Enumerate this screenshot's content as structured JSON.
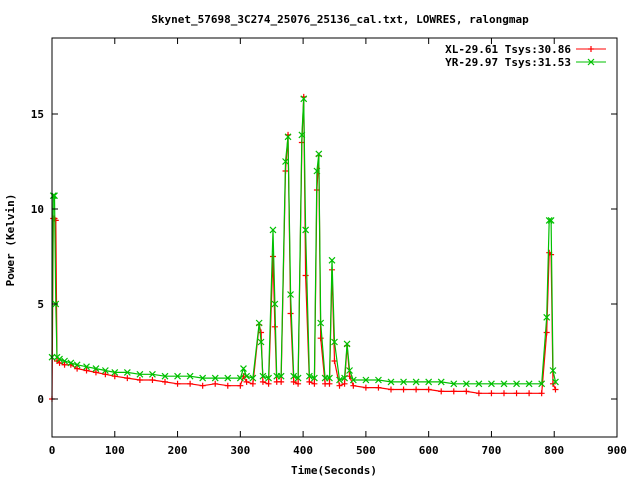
{
  "chart_data": {
    "type": "line",
    "title": "Skynet_57698_3C274_25076_25136_cal.txt, LOWRES, ralongmap",
    "xlabel": "Time(Seconds)",
    "ylabel": "Power (Kelvin)",
    "xlim": [
      0,
      900
    ],
    "ylim": [
      -2,
      19
    ],
    "xticks": [
      "0",
      "100",
      "200",
      "300",
      "400",
      "500",
      "600",
      "700",
      "800",
      "900"
    ],
    "yticks": [
      "0",
      "5",
      "10",
      "15"
    ],
    "xtick_values": [
      0,
      100,
      200,
      300,
      400,
      500,
      600,
      700,
      800,
      900
    ],
    "ytick_values": [
      0,
      5,
      10,
      15
    ],
    "legend_position": "top-right",
    "grid": false,
    "series": [
      {
        "name": "XL-29.61 Tsys:30.86",
        "color": "#ff0000",
        "marker": "plus",
        "x": [
          0,
          2,
          4,
          6,
          8,
          12,
          20,
          30,
          40,
          55,
          70,
          85,
          100,
          120,
          140,
          160,
          180,
          200,
          220,
          240,
          260,
          280,
          300,
          305,
          310,
          320,
          330,
          333,
          336,
          345,
          352,
          355,
          358,
          365,
          372,
          376,
          380,
          385,
          392,
          398,
          401,
          404,
          410,
          418,
          422,
          425,
          428,
          435,
          442,
          446,
          450,
          458,
          466,
          470,
          474,
          480,
          500,
          520,
          540,
          560,
          580,
          600,
          620,
          640,
          660,
          680,
          700,
          720,
          740,
          760,
          780,
          788,
          792,
          795,
          798,
          802
        ],
        "y": [
          0,
          9.5,
          9.5,
          9.4,
          2.0,
          1.9,
          1.8,
          1.8,
          1.6,
          1.5,
          1.4,
          1.3,
          1.2,
          1.1,
          1.0,
          1.0,
          0.9,
          0.8,
          0.8,
          0.7,
          0.8,
          0.7,
          0.7,
          1.2,
          0.9,
          0.8,
          3.9,
          3.5,
          0.9,
          0.8,
          7.5,
          3.8,
          0.9,
          0.9,
          12.0,
          13.9,
          4.5,
          0.9,
          0.8,
          13.5,
          15.9,
          6.5,
          0.9,
          0.8,
          11.0,
          12.8,
          3.2,
          0.8,
          0.8,
          6.8,
          2.0,
          0.7,
          0.8,
          2.8,
          1.2,
          0.7,
          0.6,
          0.6,
          0.5,
          0.5,
          0.5,
          0.5,
          0.4,
          0.4,
          0.4,
          0.3,
          0.3,
          0.3,
          0.3,
          0.3,
          0.3,
          3.5,
          7.7,
          7.6,
          0.8,
          0.5
        ]
      },
      {
        "name": "YR-29.97 Tsys:31.53",
        "color": "#00c000",
        "marker": "x",
        "x": [
          0,
          2,
          4,
          6,
          8,
          12,
          20,
          30,
          40,
          55,
          70,
          85,
          100,
          120,
          140,
          160,
          180,
          200,
          220,
          240,
          260,
          280,
          300,
          305,
          310,
          320,
          330,
          333,
          336,
          345,
          352,
          355,
          358,
          365,
          372,
          376,
          380,
          385,
          392,
          398,
          401,
          404,
          410,
          418,
          422,
          425,
          428,
          435,
          442,
          446,
          450,
          458,
          466,
          470,
          474,
          480,
          500,
          520,
          540,
          560,
          580,
          600,
          620,
          640,
          660,
          680,
          700,
          720,
          740,
          760,
          780,
          788,
          792,
          795,
          798,
          802
        ],
        "y": [
          2.2,
          10.7,
          10.7,
          5.0,
          2.2,
          2.1,
          2.0,
          1.9,
          1.8,
          1.7,
          1.6,
          1.5,
          1.4,
          1.4,
          1.3,
          1.3,
          1.2,
          1.2,
          1.2,
          1.1,
          1.1,
          1.1,
          1.1,
          1.6,
          1.2,
          1.1,
          4.0,
          3.0,
          1.2,
          1.1,
          8.9,
          5.0,
          1.2,
          1.2,
          12.5,
          13.8,
          5.5,
          1.2,
          1.1,
          13.9,
          15.8,
          8.9,
          1.2,
          1.1,
          12.0,
          12.9,
          4.0,
          1.1,
          1.1,
          7.3,
          3.0,
          1.0,
          1.1,
          2.9,
          1.5,
          1.0,
          1.0,
          1.0,
          0.9,
          0.9,
          0.9,
          0.9,
          0.9,
          0.8,
          0.8,
          0.8,
          0.8,
          0.8,
          0.8,
          0.8,
          0.8,
          4.3,
          9.4,
          9.4,
          1.5,
          0.9
        ]
      }
    ]
  }
}
